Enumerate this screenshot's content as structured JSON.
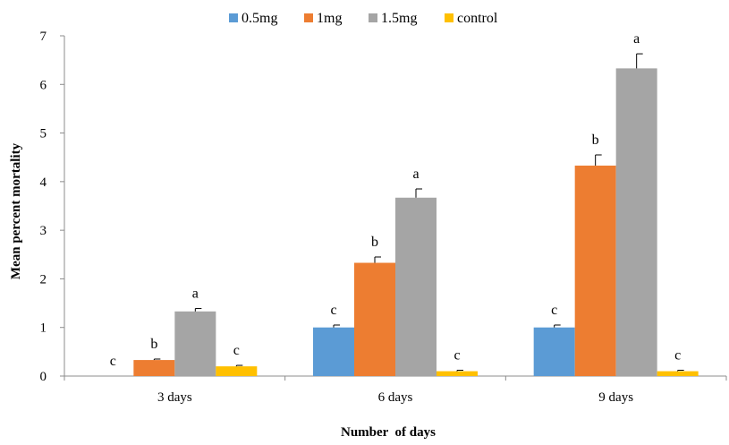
{
  "chart_data": {
    "type": "bar",
    "title": "",
    "xlabel": "Number  of days",
    "ylabel": "Mean percent mortality",
    "ylim": [
      0,
      7
    ],
    "yticks": [
      "0",
      "1",
      "2",
      "3",
      "4",
      "5",
      "6",
      "7"
    ],
    "categories": [
      "3 days",
      "6 days",
      "9 days"
    ],
    "legend_position": "top",
    "series": [
      {
        "name": "0.5mg",
        "color": "#5B9BD5",
        "values": [
          0,
          1.0,
          1.0
        ],
        "errors": [
          0,
          0.05,
          0.05
        ],
        "letters": [
          "c",
          "c",
          "c"
        ]
      },
      {
        "name": "1mg",
        "color": "#ED7D31",
        "values": [
          0.33,
          2.33,
          4.33
        ],
        "errors": [
          0.02,
          0.12,
          0.22
        ],
        "letters": [
          "b",
          "b",
          "b"
        ]
      },
      {
        "name": "1.5mg",
        "color": "#A5A5A5",
        "values": [
          1.33,
          3.67,
          6.33
        ],
        "errors": [
          0.06,
          0.18,
          0.3
        ],
        "letters": [
          "a",
          "a",
          "a"
        ]
      },
      {
        "name": "control",
        "color": "#FFC000",
        "values": [
          0.2,
          0.1,
          0.1
        ],
        "errors": [
          0.02,
          0.02,
          0.02
        ],
        "letters": [
          "c",
          "c",
          "c"
        ]
      }
    ],
    "grid": false
  }
}
